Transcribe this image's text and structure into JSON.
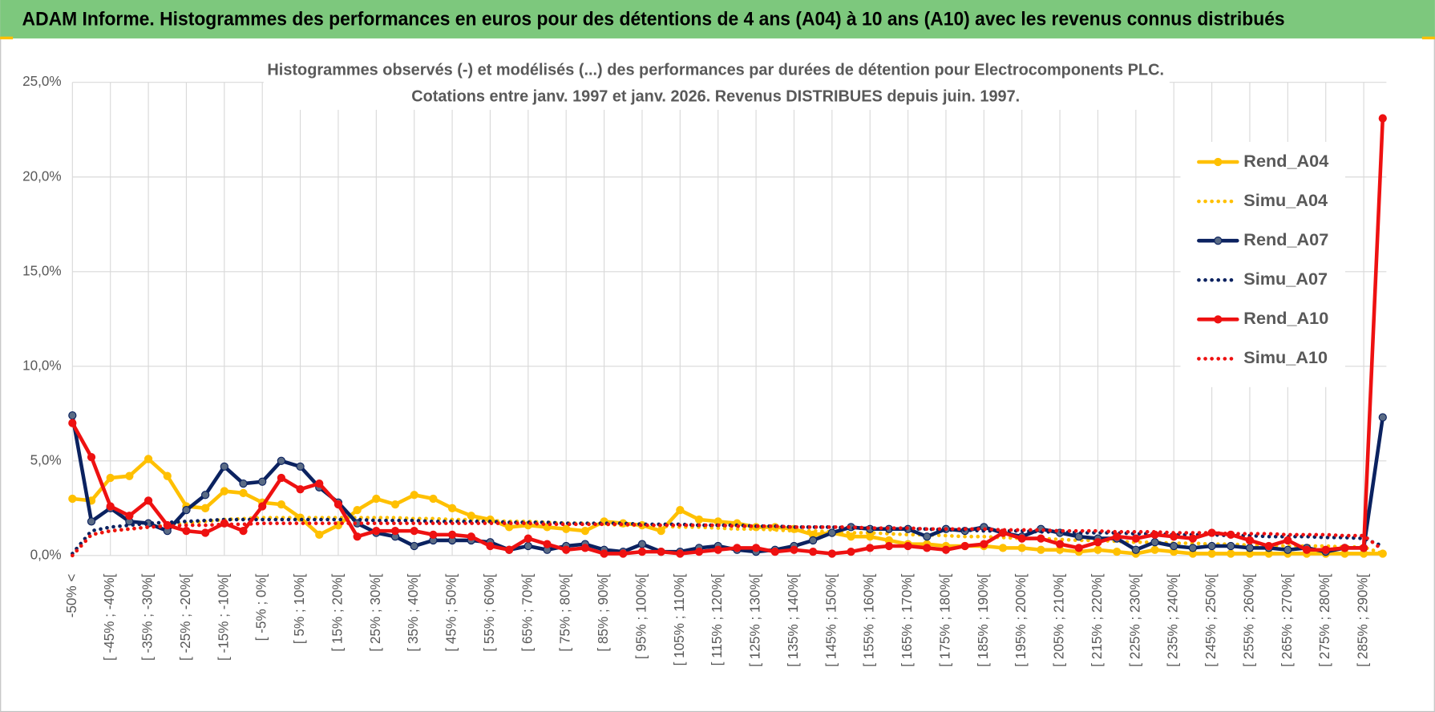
{
  "header": {
    "title": "ADAM Informe. Histogrammes des performances en euros pour des détentions de 4 ans (A04) à 10 ans (A10) avec les revenus connus distribués"
  },
  "chart_data": {
    "type": "line",
    "title": "Histogrammes observés (-) et modélisés (...) des performances par durées de détention pour Electrocomponents PLC.",
    "subtitle": "Cotations entre janv. 1997 et janv. 2026. Revenus DISTRIBUES depuis juin. 1997.",
    "categories": [
      "-50% <",
      null,
      "[ -45% ; -40%[",
      null,
      "[ -35% ; -30%[",
      null,
      "[ -25% ; -20%[",
      null,
      "[ -15% ; -10%[",
      null,
      "[ -5% ; 0%[",
      null,
      "[ 5% ; 10%[",
      null,
      "[ 15% ; 20%[",
      null,
      "[ 25% ; 30%[",
      null,
      "[ 35% ; 40%[",
      null,
      "[ 45% ; 50%[",
      null,
      "[ 55% ; 60%[",
      null,
      "[ 65% ; 70%[",
      null,
      "[ 75% ; 80%[",
      null,
      "[ 85% ; 90%[",
      null,
      "[ 95% ; 100%[",
      null,
      "[ 105% ; 110%[",
      null,
      "[ 115% ; 120%[",
      null,
      "[ 125% ; 130%[",
      null,
      "[ 135% ; 140%[",
      null,
      "[ 145% ; 150%[",
      null,
      "[ 155% ; 160%[",
      null,
      "[ 165% ; 170%[",
      null,
      "[ 175% ; 180%[",
      null,
      "[ 185% ; 190%[",
      null,
      "[ 195% ; 200%[",
      null,
      "[ 205% ; 210%[",
      null,
      "[ 215% ; 220%[",
      null,
      "[ 225% ; 230%[",
      null,
      "[ 235% ; 240%[",
      null,
      "[ 245% ; 250%[",
      null,
      "[ 255% ; 260%[",
      null,
      "[ 265% ; 270%[",
      null,
      "[ 275% ; 280%[",
      null,
      "[ 285% ; 290%[",
      null
    ],
    "ylim": [
      0,
      25
    ],
    "yticks": [
      {
        "value": 0,
        "label": "0,0%"
      },
      {
        "value": 5,
        "label": "5,0%"
      },
      {
        "value": 10,
        "label": "10,0%"
      },
      {
        "value": 15,
        "label": "15,0%"
      },
      {
        "value": 20,
        "label": "20,0%"
      },
      {
        "value": 25,
        "label": "25,0%"
      }
    ],
    "grid": true,
    "legend": "right",
    "series": [
      {
        "name": "Rend_A04",
        "color": "#ffc000",
        "style": "solid",
        "markers": true,
        "values": [
          3.0,
          2.9,
          4.1,
          4.2,
          5.1,
          4.2,
          2.6,
          2.5,
          3.4,
          3.3,
          2.8,
          2.7,
          2.0,
          1.1,
          1.6,
          2.4,
          3.0,
          2.7,
          3.2,
          3.0,
          2.5,
          2.1,
          1.9,
          1.5,
          1.6,
          1.5,
          1.4,
          1.3,
          1.8,
          1.7,
          1.6,
          1.3,
          2.4,
          1.9,
          1.8,
          1.7,
          1.5,
          1.5,
          1.4,
          1.1,
          1.2,
          1.0,
          1.0,
          0.8,
          0.6,
          0.6,
          0.5,
          0.5,
          0.5,
          0.4,
          0.4,
          0.3,
          0.3,
          0.2,
          0.3,
          0.2,
          0.1,
          0.3,
          0.2,
          0.1,
          0.1,
          0.1,
          0.1,
          0.1,
          0.1,
          0.1,
          0.1,
          0.1,
          0.1,
          0.1
        ]
      },
      {
        "name": "Simu_A04",
        "color": "#ffc000",
        "style": "dotted",
        "markers": false,
        "values": [
          0,
          1.1,
          1.3,
          1.4,
          1.5,
          1.6,
          1.7,
          1.8,
          1.9,
          1.95,
          2.0,
          2.0,
          2.0,
          2.0,
          2.0,
          2.0,
          2.0,
          2.0,
          1.95,
          1.95,
          1.9,
          1.9,
          1.85,
          1.8,
          1.8,
          1.75,
          1.7,
          1.7,
          1.65,
          1.6,
          1.6,
          1.55,
          1.5,
          1.5,
          1.45,
          1.4,
          1.4,
          1.35,
          1.3,
          1.3,
          1.25,
          1.2,
          1.2,
          1.15,
          1.1,
          1.1,
          1.05,
          1.0,
          1.0,
          0.95,
          0.9,
          0.9,
          0.85,
          0.8,
          0.8,
          0.75,
          0.7,
          0.7,
          0.65,
          0.65,
          0.6,
          0.6,
          0.55,
          0.55,
          0.5,
          0.5,
          0.5,
          0.45,
          0.45,
          0.1
        ]
      },
      {
        "name": "Rend_A07",
        "color": "#0b2260",
        "marker_color": "#5a6b85",
        "style": "solid",
        "markers": true,
        "values": [
          7.4,
          1.8,
          2.5,
          1.8,
          1.7,
          1.3,
          2.4,
          3.2,
          4.7,
          3.8,
          3.9,
          5.0,
          4.7,
          3.6,
          2.8,
          1.7,
          1.2,
          1.0,
          0.5,
          0.8,
          0.8,
          0.8,
          0.7,
          0.3,
          0.5,
          0.3,
          0.5,
          0.6,
          0.3,
          0.2,
          0.6,
          0.2,
          0.2,
          0.4,
          0.5,
          0.3,
          0.2,
          0.3,
          0.5,
          0.8,
          1.2,
          1.5,
          1.4,
          1.4,
          1.4,
          1.0,
          1.4,
          1.3,
          1.5,
          1.2,
          1.0,
          1.4,
          1.2,
          1.0,
          0.9,
          0.9,
          0.3,
          0.7,
          0.5,
          0.4,
          0.5,
          0.5,
          0.4,
          0.4,
          0.3,
          0.4,
          0.2,
          0.4,
          0.4,
          7.3
        ]
      },
      {
        "name": "Simu_A07",
        "color": "#0b2260",
        "style": "dotted",
        "markers": false,
        "values": [
          0.1,
          1.3,
          1.5,
          1.6,
          1.7,
          1.75,
          1.8,
          1.85,
          1.9,
          1.9,
          1.9,
          1.9,
          1.9,
          1.9,
          1.9,
          1.9,
          1.85,
          1.85,
          1.85,
          1.8,
          1.8,
          1.8,
          1.8,
          1.75,
          1.75,
          1.75,
          1.7,
          1.7,
          1.7,
          1.7,
          1.65,
          1.65,
          1.65,
          1.6,
          1.6,
          1.6,
          1.55,
          1.55,
          1.5,
          1.5,
          1.5,
          1.45,
          1.45,
          1.4,
          1.4,
          1.4,
          1.35,
          1.35,
          1.3,
          1.3,
          1.3,
          1.25,
          1.25,
          1.2,
          1.2,
          1.2,
          1.15,
          1.15,
          1.1,
          1.1,
          1.1,
          1.05,
          1.05,
          1.0,
          1.0,
          1.0,
          0.95,
          0.95,
          0.9,
          0.5
        ]
      },
      {
        "name": "Rend_A10",
        "color": "#ee1111",
        "style": "solid",
        "markers": true,
        "values": [
          7.0,
          5.2,
          2.6,
          2.1,
          2.9,
          1.6,
          1.3,
          1.2,
          1.7,
          1.3,
          2.6,
          4.1,
          3.5,
          3.8,
          2.7,
          1.0,
          1.3,
          1.3,
          1.3,
          1.1,
          1.1,
          1.0,
          0.5,
          0.3,
          0.9,
          0.6,
          0.3,
          0.4,
          0.1,
          0.1,
          0.2,
          0.2,
          0.1,
          0.2,
          0.3,
          0.4,
          0.4,
          0.2,
          0.3,
          0.2,
          0.1,
          0.2,
          0.4,
          0.5,
          0.5,
          0.4,
          0.3,
          0.5,
          0.6,
          1.2,
          0.9,
          0.9,
          0.6,
          0.4,
          0.7,
          1.0,
          0.9,
          1.1,
          1.0,
          0.9,
          1.2,
          1.1,
          0.8,
          0.5,
          0.8,
          0.3,
          0.3,
          0.4,
          0.4,
          23.1
        ]
      },
      {
        "name": "Simu_A10",
        "color": "#ee1111",
        "style": "dotted",
        "markers": false,
        "values": [
          0,
          1.1,
          1.3,
          1.4,
          1.5,
          1.55,
          1.6,
          1.6,
          1.65,
          1.65,
          1.7,
          1.7,
          1.7,
          1.7,
          1.7,
          1.7,
          1.7,
          1.7,
          1.7,
          1.7,
          1.7,
          1.7,
          1.7,
          1.7,
          1.7,
          1.65,
          1.65,
          1.65,
          1.65,
          1.65,
          1.6,
          1.6,
          1.6,
          1.6,
          1.6,
          1.55,
          1.55,
          1.55,
          1.5,
          1.5,
          1.5,
          1.5,
          1.45,
          1.45,
          1.45,
          1.4,
          1.4,
          1.4,
          1.4,
          1.35,
          1.35,
          1.35,
          1.3,
          1.3,
          1.3,
          1.25,
          1.25,
          1.25,
          1.2,
          1.2,
          1.2,
          1.15,
          1.15,
          1.15,
          1.1,
          1.1,
          1.1,
          1.05,
          1.05,
          0.3
        ]
      }
    ]
  }
}
